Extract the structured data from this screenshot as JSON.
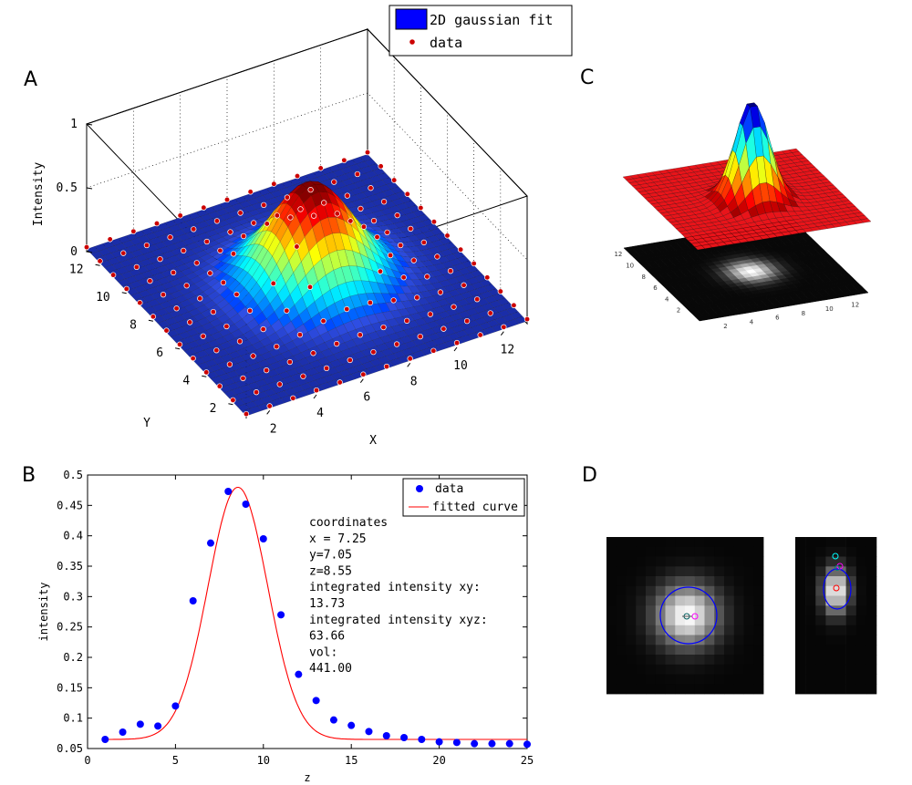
{
  "figure": {
    "panel_labels": [
      "A",
      "B",
      "C",
      "D"
    ]
  },
  "chart_data": [
    {
      "id": "A",
      "type": "surface3d",
      "legend": [
        "2D gaussian fit",
        "data"
      ],
      "zlabel": "Intensity",
      "xlabel": "X",
      "ylabel": "Y",
      "z_ticks": [
        "0",
        "0.5",
        "1"
      ],
      "x_ticks": [
        "2",
        "4",
        "6",
        "8",
        "10",
        "12"
      ],
      "y_ticks": [
        "2",
        "4",
        "6",
        "8",
        "10",
        "12"
      ],
      "xlim": [
        1,
        13
      ],
      "ylim": [
        1,
        13
      ],
      "zlim": [
        0,
        1
      ],
      "gaussian": {
        "peak": 0.77,
        "center_x": 7.25,
        "center_y": 7.05,
        "sigma": 1.6,
        "offset": 0.02
      },
      "colors": {
        "surface_low": "#1a2a9a",
        "data_marker": "#cc0000",
        "legend_patch": "#0000ff"
      }
    },
    {
      "id": "B",
      "type": "scatter",
      "xlabel": "z",
      "ylabel": "intensity",
      "xlim": [
        0,
        25
      ],
      "ylim": [
        0.05,
        0.5
      ],
      "x_ticks": [
        "0",
        "5",
        "10",
        "15",
        "20",
        "25"
      ],
      "y_ticks": [
        "0.05",
        "0.1",
        "0.15",
        "0.2",
        "0.25",
        "0.3",
        "0.35",
        "0.4",
        "0.45",
        "0.5"
      ],
      "legend": [
        "data",
        "fitted curve"
      ],
      "series": [
        {
          "name": "data",
          "x": [
            1,
            2,
            3,
            4,
            5,
            6,
            7,
            8,
            9,
            10,
            11,
            12,
            13,
            14,
            15,
            16,
            17,
            18,
            19,
            20,
            21,
            22,
            23,
            24,
            25
          ],
          "values": [
            0.065,
            0.077,
            0.09,
            0.087,
            0.12,
            0.293,
            0.388,
            0.473,
            0.452,
            0.395,
            0.27,
            0.172,
            0.129,
            0.097,
            0.088,
            0.078,
            0.071,
            0.068,
            0.065,
            0.061,
            0.06,
            0.058,
            0.058,
            0.058,
            0.057
          ],
          "color": "#0000ff"
        },
        {
          "name": "fitted curve",
          "color": "#ff0000",
          "fit": {
            "baseline": 0.065,
            "amplitude": 0.415,
            "center": 8.55,
            "sigma": 1.7
          }
        }
      ],
      "annotation": [
        "coordinates",
        "x = 7.25",
        "y=7.05",
        "z=8.55",
        "integrated intensity xy:",
        "13.73",
        "integrated intensity xyz:",
        "63.66",
        "vol:",
        "441.00"
      ]
    },
    {
      "id": "C",
      "type": "surface3d_with_heatmap",
      "x_ticks": [
        "2",
        "4",
        "6",
        "8",
        "10",
        "12"
      ],
      "y_ticks": [
        "2",
        "4",
        "6",
        "8",
        "10",
        "12"
      ]
    },
    {
      "id": "D",
      "type": "heatmap",
      "images": [
        "xy-projection",
        "xz-projection"
      ],
      "colors": {
        "ellipse": "#0000ff",
        "marker_magenta": "#ff00ff",
        "marker_cyan": "#00ffff",
        "marker_red": "#ff0000"
      }
    }
  ]
}
